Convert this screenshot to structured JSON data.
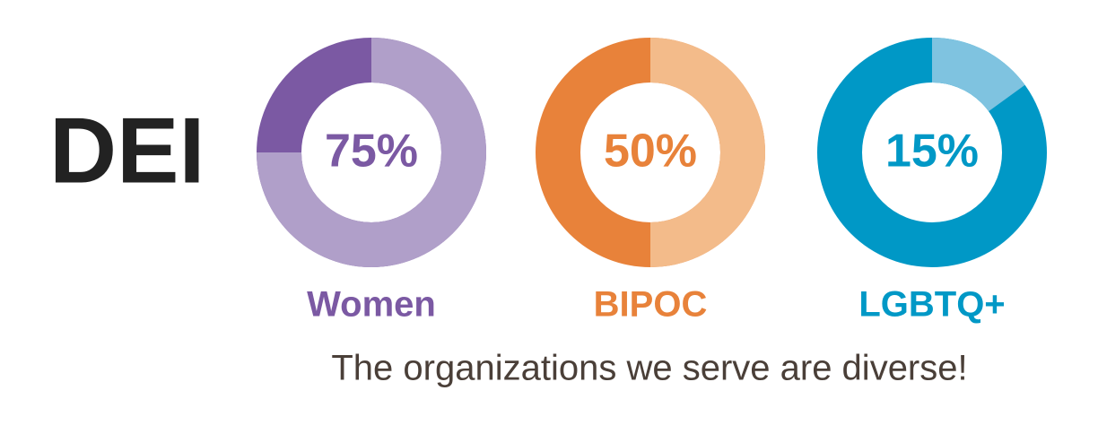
{
  "title": "DEI",
  "caption": "The organizations we serve are diverse!",
  "chart_data": [
    {
      "type": "donut",
      "title": "Women",
      "values": [
        75
      ],
      "value_labels": [
        "75%"
      ],
      "color": "#b09fc9",
      "rest_color": "#7b59a3",
      "text_color": "#7b59a3"
    },
    {
      "type": "donut",
      "title": "BIPOC",
      "values": [
        50
      ],
      "value_labels": [
        "50%"
      ],
      "color": "#f3bb8a",
      "rest_color": "#e8823a",
      "text_color": "#e8823a"
    },
    {
      "type": "donut",
      "title": "LGBTQ+",
      "values": [
        15
      ],
      "value_labels": [
        "15%"
      ],
      "color": "#7fc3e0",
      "rest_color": "#0098c6",
      "text_color": "#0098c6"
    }
  ]
}
